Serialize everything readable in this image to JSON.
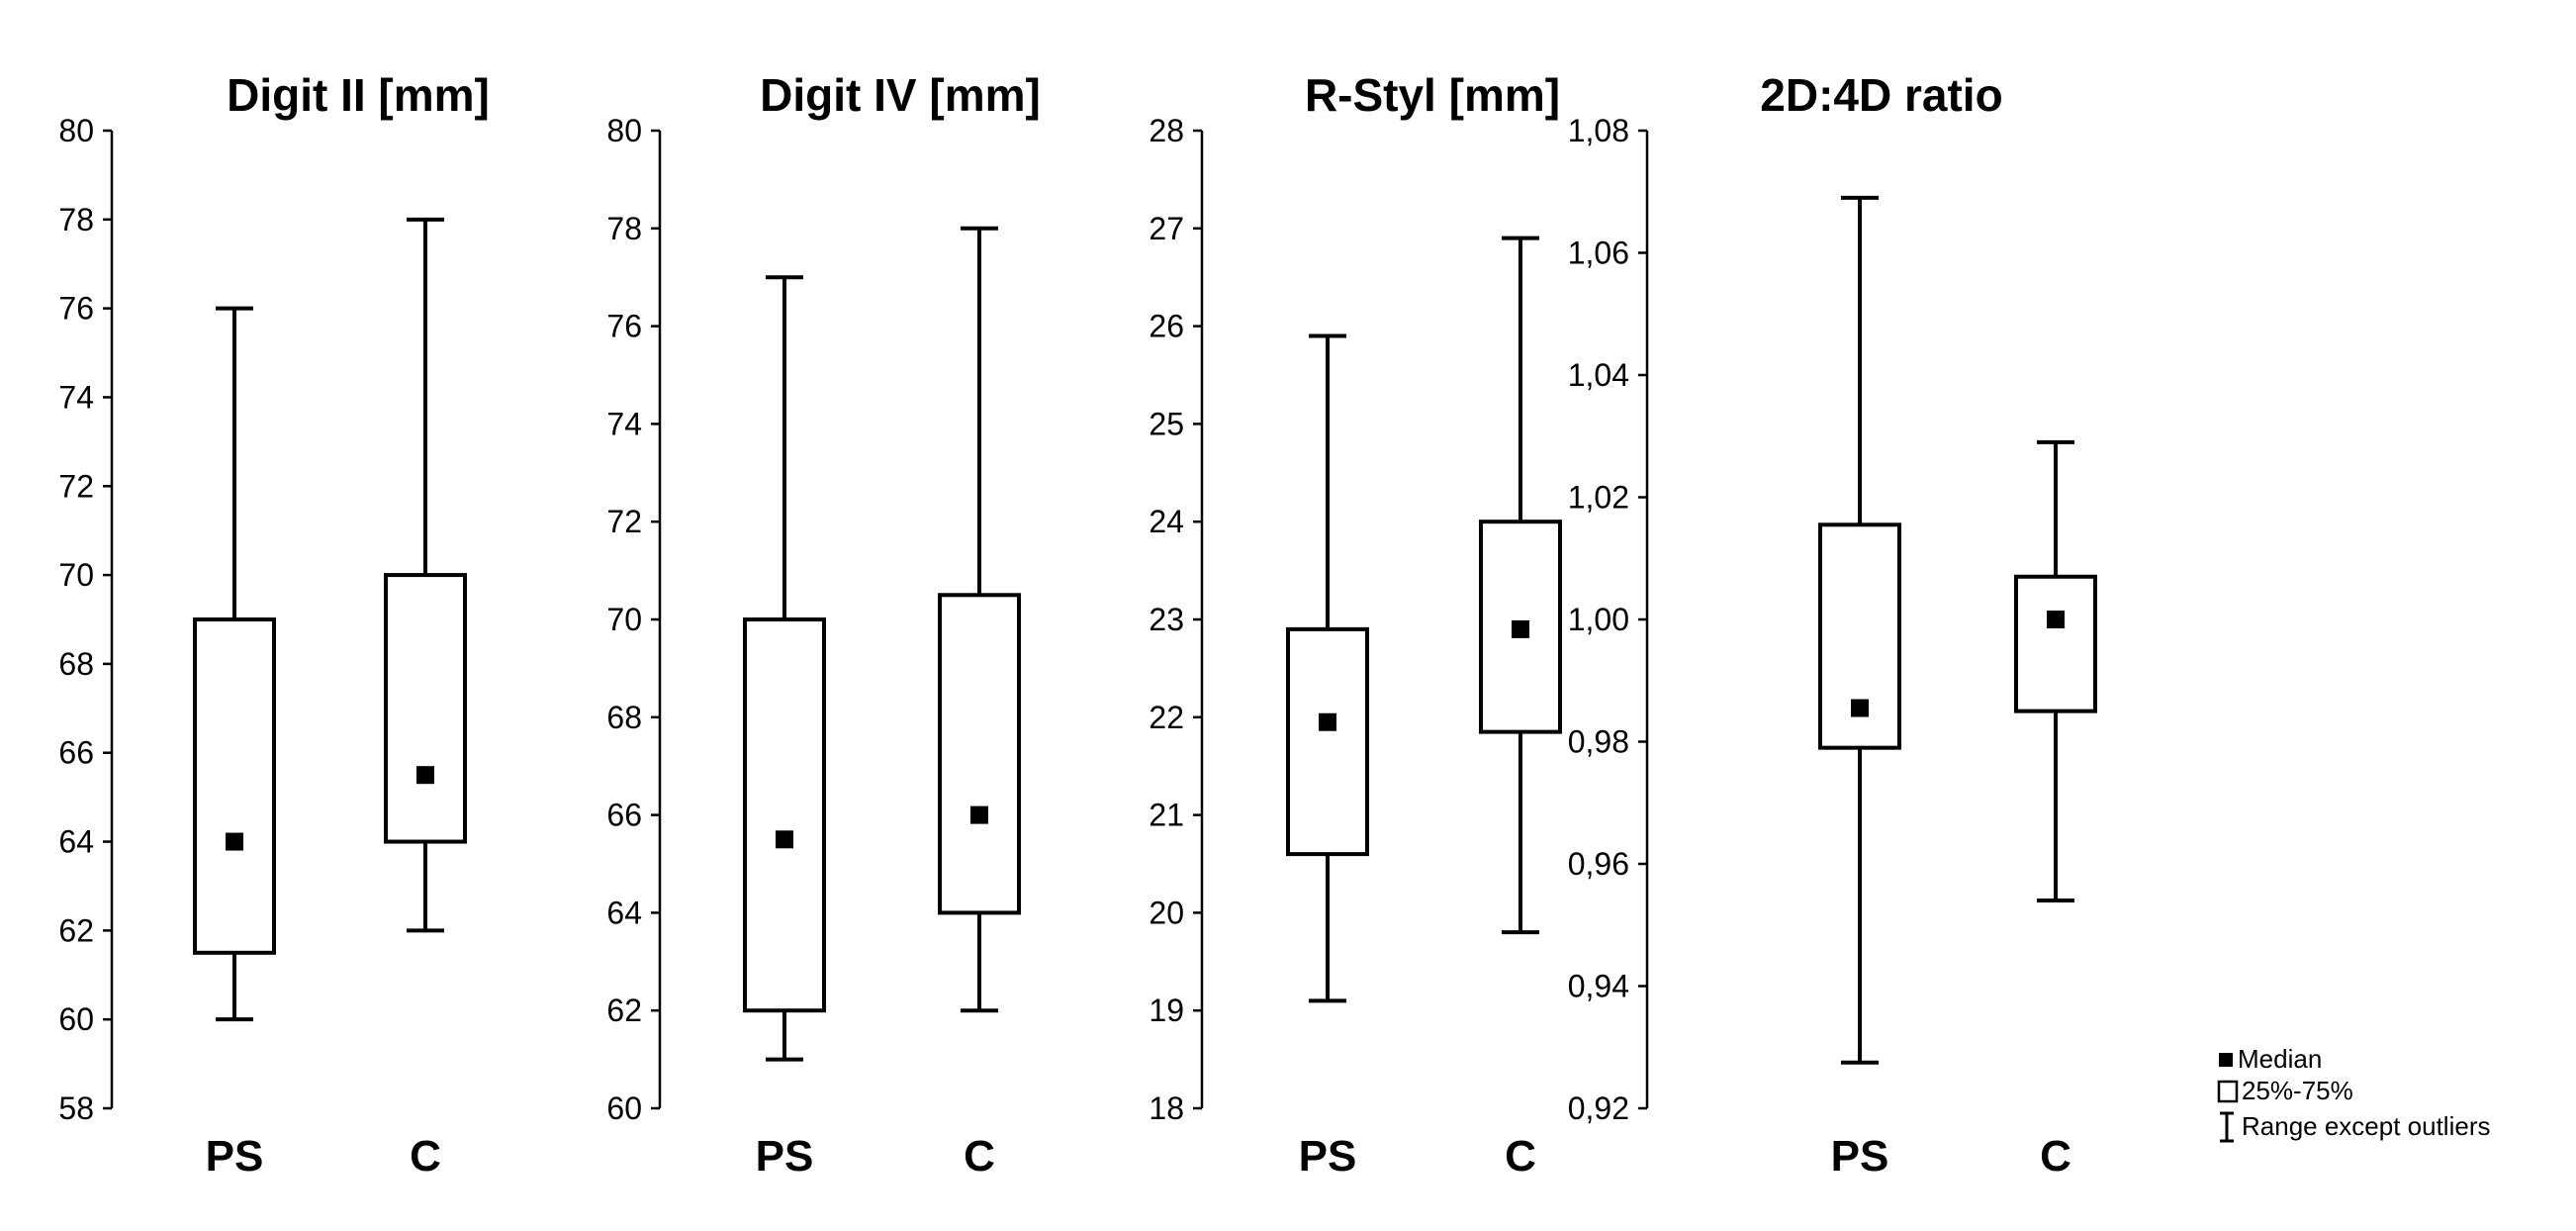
{
  "chart_data": [
    {
      "type": "boxplot",
      "title": "Digit II [mm]",
      "ylim": [
        58,
        80
      ],
      "ticks": [
        "58",
        "60",
        "62",
        "64",
        "66",
        "68",
        "70",
        "72",
        "74",
        "76",
        "78",
        "80"
      ],
      "categories": [
        "PS",
        "C"
      ],
      "groups": [
        {
          "name": "PS",
          "min": 60,
          "q1": 61.5,
          "median": 64,
          "q3": 69,
          "max": 76
        },
        {
          "name": "C",
          "min": 62,
          "q1": 64,
          "median": 65.5,
          "q3": 70,
          "max": 78
        }
      ]
    },
    {
      "type": "boxplot",
      "title": "Digit IV [mm]",
      "ylim": [
        60,
        80
      ],
      "ticks": [
        "60",
        "62",
        "64",
        "66",
        "68",
        "70",
        "72",
        "74",
        "76",
        "78",
        "80"
      ],
      "categories": [
        "PS",
        "C"
      ],
      "groups": [
        {
          "name": "PS",
          "min": 61,
          "q1": 62,
          "median": 65.5,
          "q3": 70,
          "max": 77
        },
        {
          "name": "C",
          "min": 62,
          "q1": 64,
          "median": 66,
          "q3": 70.5,
          "max": 78
        }
      ]
    },
    {
      "type": "boxplot",
      "title": "R-Styl [mm]",
      "ylim": [
        18,
        28
      ],
      "ticks": [
        "18",
        "19",
        "20",
        "21",
        "22",
        "23",
        "24",
        "25",
        "26",
        "27",
        "28"
      ],
      "categories": [
        "PS",
        "C"
      ],
      "groups": [
        {
          "name": "PS",
          "min": 19.1,
          "q1": 20.6,
          "median": 21.95,
          "q3": 22.9,
          "max": 25.9
        },
        {
          "name": "C",
          "min": 19.8,
          "q1": 21.85,
          "median": 22.9,
          "q3": 24,
          "max": 26.9
        }
      ]
    },
    {
      "type": "boxplot",
      "title": "2D:4D ratio",
      "ylim": [
        0.92,
        1.08
      ],
      "ticks": [
        "0,92",
        "0,94",
        "0,96",
        "0,98",
        "1,00",
        "1,02",
        "1,04",
        "1,06",
        "1,08"
      ],
      "categories": [
        "PS",
        "C"
      ],
      "groups": [
        {
          "name": "PS",
          "min": 0.9275,
          "q1": 0.979,
          "median": 0.9855,
          "q3": 1.0155,
          "max": 1.069
        },
        {
          "name": "C",
          "min": 0.954,
          "q1": 0.985,
          "median": 1.0,
          "q3": 1.007,
          "max": 1.029
        }
      ]
    }
  ],
  "legend": {
    "items": [
      "Median",
      "25%-75%",
      "Range except outliers"
    ]
  }
}
